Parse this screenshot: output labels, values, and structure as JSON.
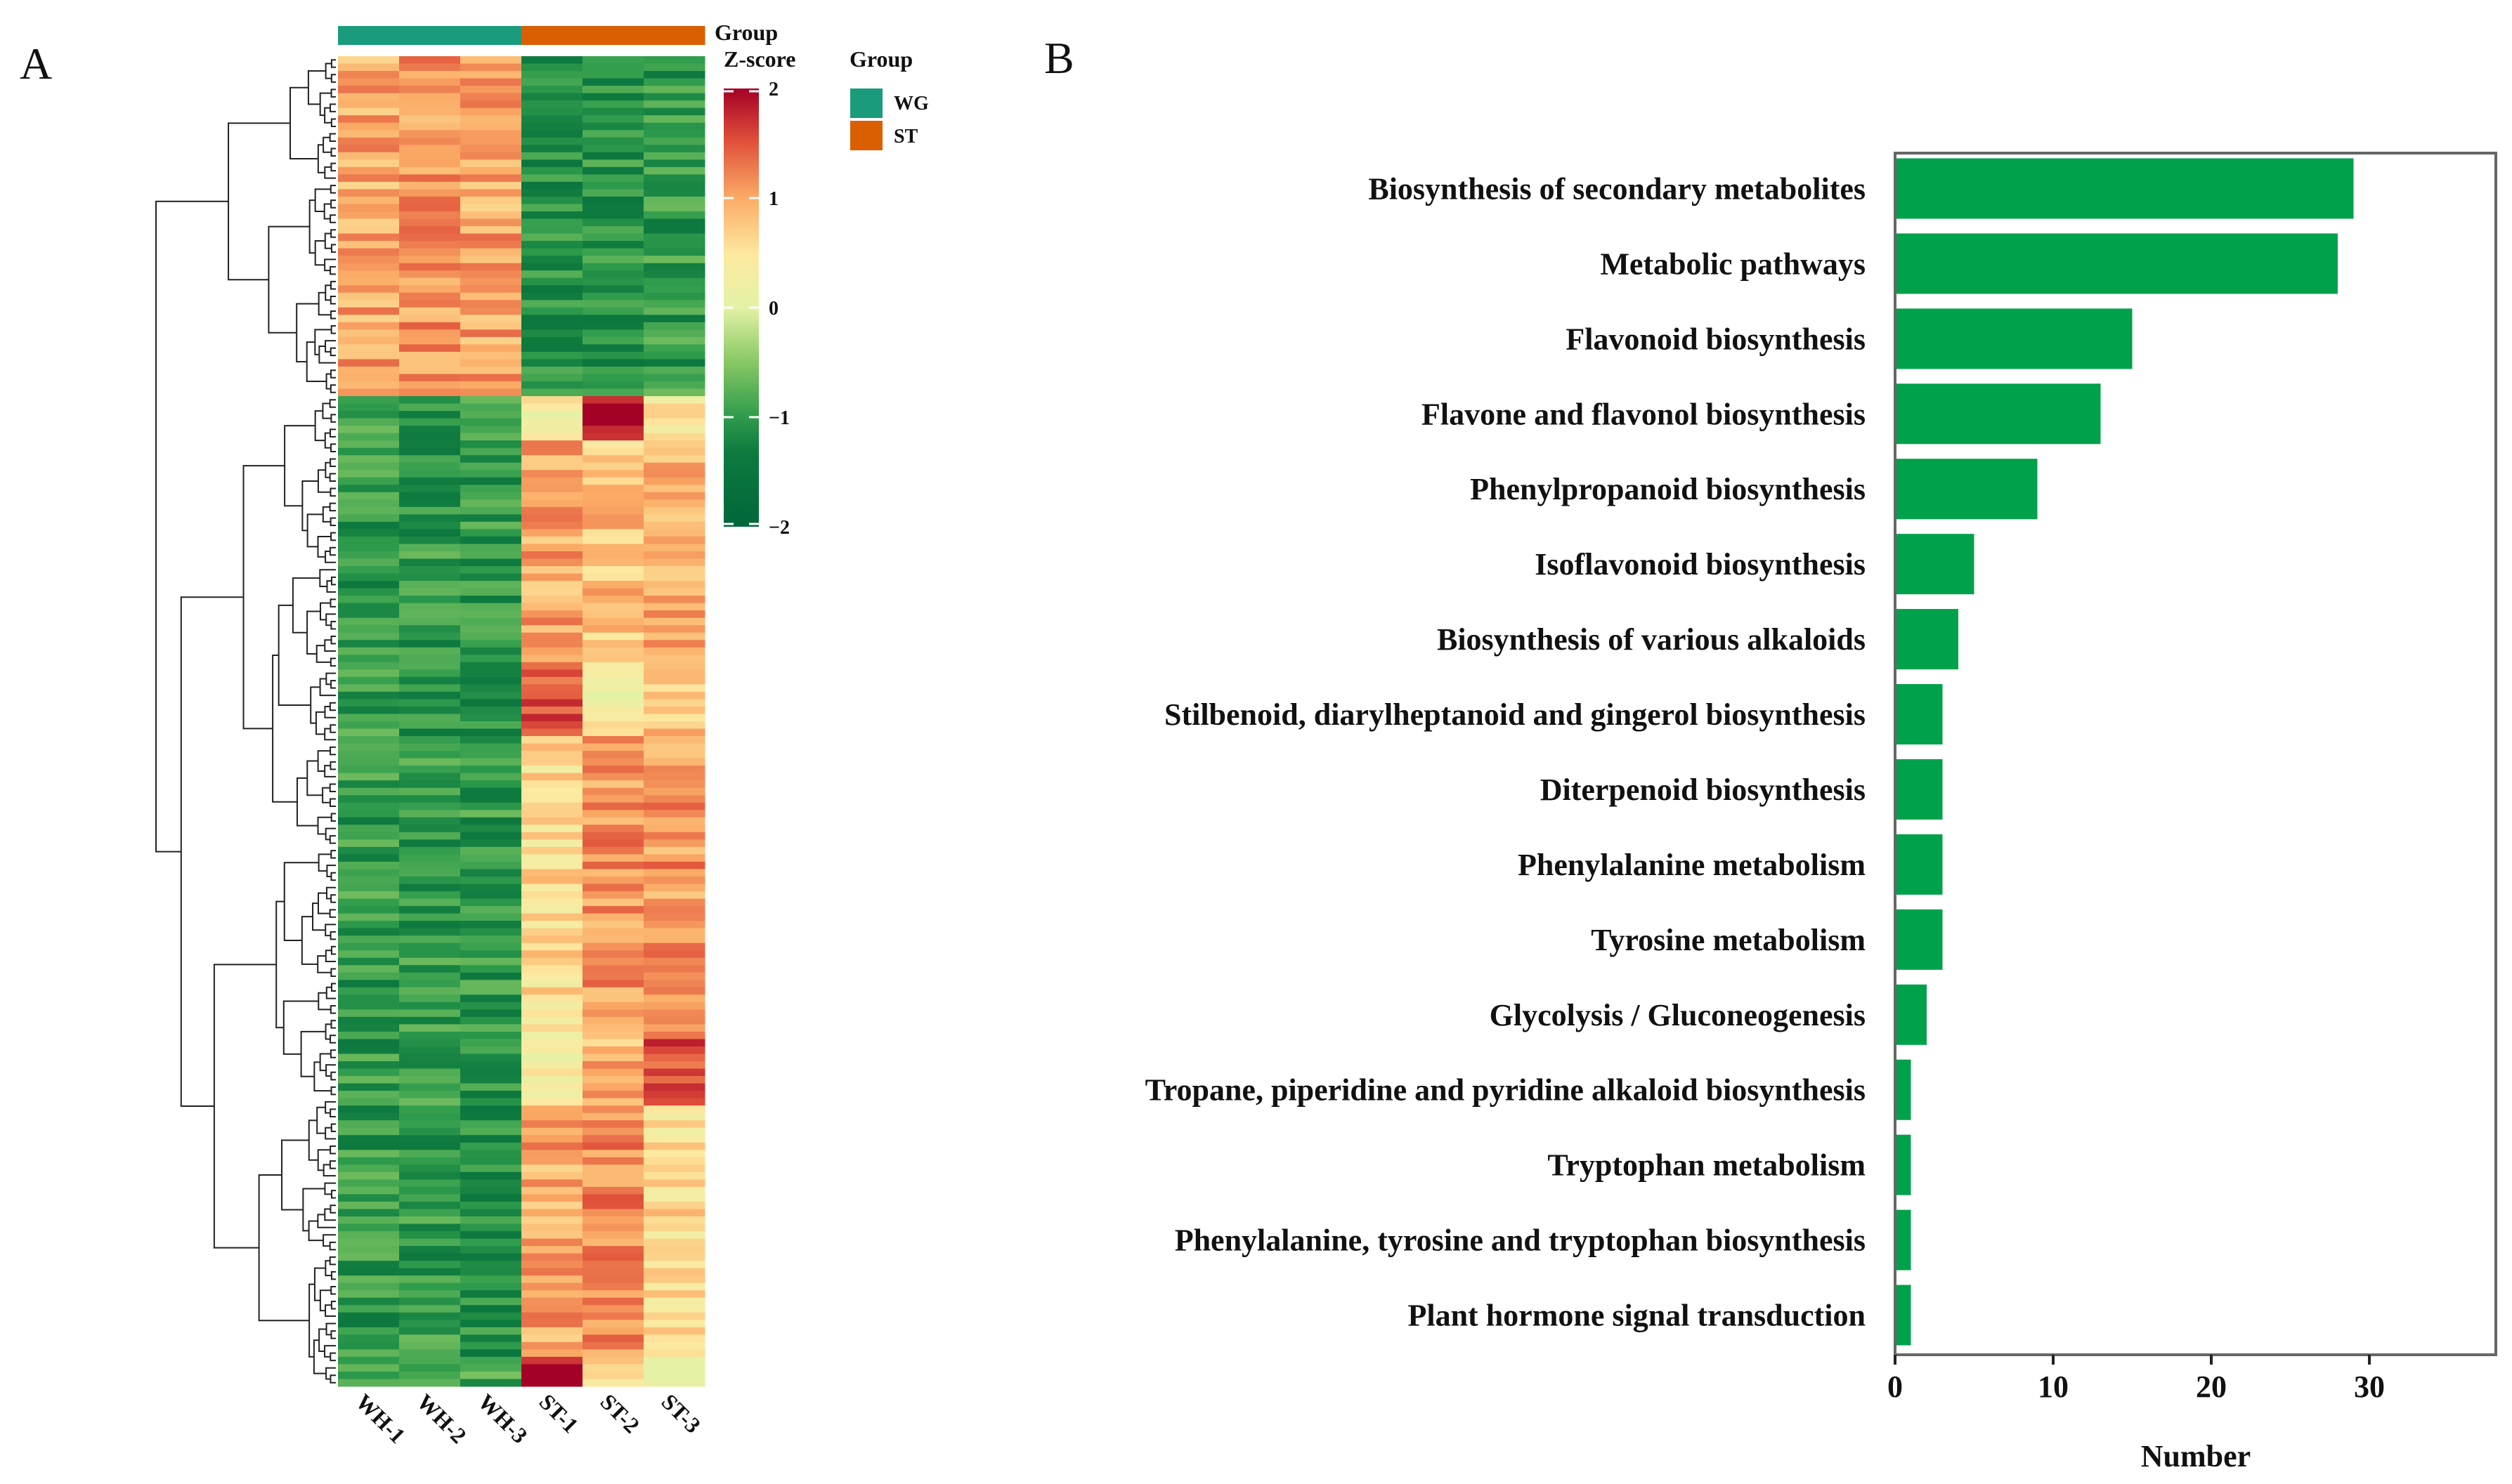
{
  "panels": {
    "a": "A",
    "b": "B"
  },
  "chart_data": [
    {
      "type": "heatmap",
      "title": "",
      "columns": [
        "WH-1",
        "WH-2",
        "WH-3",
        "ST-1",
        "ST-2",
        "ST-3"
      ],
      "column_groups": [
        "WG",
        "WG",
        "WG",
        "ST",
        "ST",
        "ST"
      ],
      "annotation_label": "Group",
      "colorbar": {
        "title": "Z-score",
        "ticks": [
          "2",
          "1",
          "0",
          "−1",
          "−2"
        ],
        "tick_values": [
          2,
          1,
          0,
          -1,
          -2
        ],
        "range": [
          -2,
          2
        ]
      },
      "legend": {
        "title": "Group",
        "items": [
          {
            "label": "WG",
            "color": "#1a9b7c"
          },
          {
            "label": "ST",
            "color": "#d95f02"
          }
        ]
      },
      "row_clusters_approx": [
        {
          "rows": 46,
          "mean_z": [
            1.0,
            1.1,
            1.0,
            -1.1,
            -1.1,
            -1.0
          ]
        },
        {
          "rows": 6,
          "mean_z": [
            -0.9,
            -1.1,
            -1.0,
            0.3,
            1.8,
            0.5
          ]
        },
        {
          "rows": 30,
          "mean_z": [
            -1.0,
            -1.0,
            -1.0,
            1.0,
            0.8,
            1.0
          ]
        },
        {
          "rows": 10,
          "mean_z": [
            -1.0,
            -1.0,
            -1.1,
            1.5,
            0.3,
            0.8
          ]
        },
        {
          "rows": 40,
          "mean_z": [
            -1.0,
            -1.0,
            -1.0,
            0.6,
            1.1,
            1.1
          ]
        },
        {
          "rows": 10,
          "mean_z": [
            -1.0,
            -0.9,
            -1.0,
            0.3,
            0.9,
            1.5
          ]
        },
        {
          "rows": 34,
          "mean_z": [
            -1.0,
            -1.0,
            -1.1,
            1.0,
            1.2,
            0.6
          ]
        },
        {
          "rows": 4,
          "mean_z": [
            -0.9,
            -1.0,
            -0.9,
            2.0,
            0.5,
            -0.2
          ]
        }
      ]
    },
    {
      "type": "bar",
      "orientation": "horizontal",
      "categories": [
        "Biosynthesis of secondary metabolites",
        "Metabolic pathways",
        "Flavonoid biosynthesis",
        "Flavone and flavonol biosynthesis",
        "Phenylpropanoid biosynthesis",
        "Isoflavonoid biosynthesis",
        "Biosynthesis of various alkaloids",
        "Stilbenoid, diarylheptanoid and gingerol biosynthesis",
        "Diterpenoid biosynthesis",
        "Phenylalanine metabolism",
        "Tyrosine metabolism",
        "Glycolysis / Gluconeogenesis",
        "Tropane, piperidine and pyridine alkaloid biosynthesis",
        "Tryptophan metabolism",
        "Phenylalanine, tyrosine and tryptophan biosynthesis",
        "Plant hormone signal transduction"
      ],
      "values": [
        29,
        28,
        15,
        13,
        9,
        5,
        4,
        3,
        3,
        3,
        3,
        2,
        1,
        1,
        1,
        1
      ],
      "xlabel": "Number",
      "ylabel": "",
      "xlim": [
        0,
        38
      ],
      "xticks": [
        "0",
        "10",
        "20",
        "30"
      ],
      "xtick_values": [
        0,
        10,
        20,
        30
      ],
      "bar_color": "#00a14b",
      "grid": false
    }
  ]
}
